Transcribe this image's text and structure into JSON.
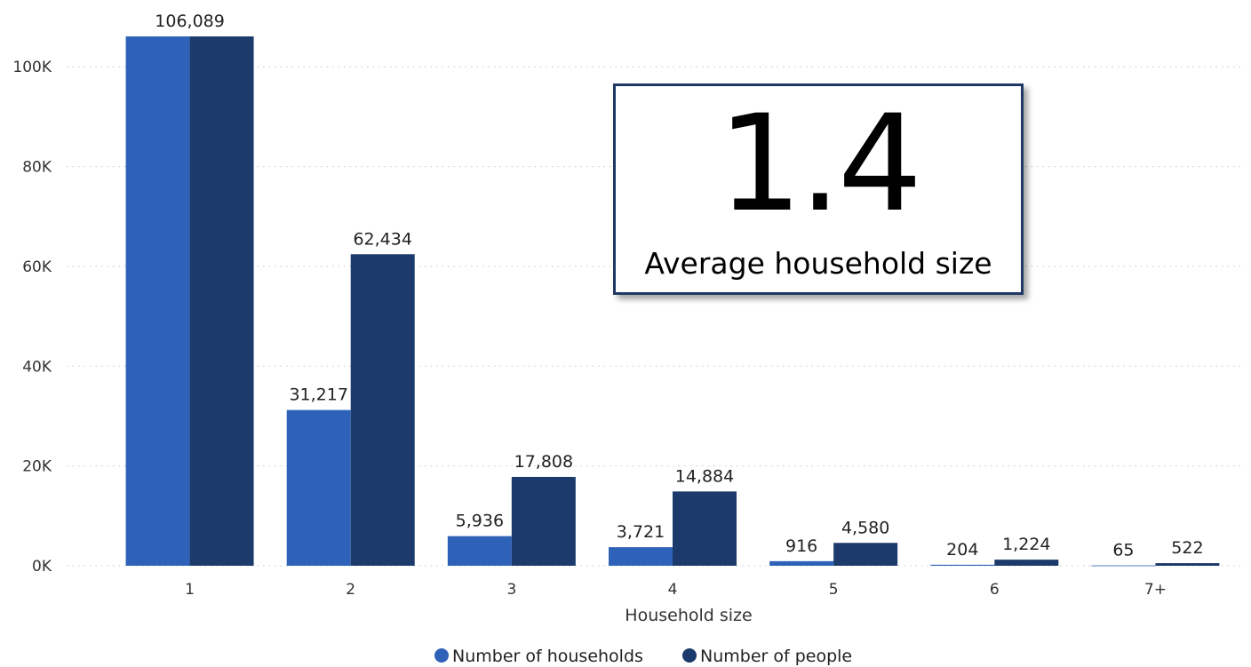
{
  "kpi": {
    "value": "1.4",
    "label": "Average household size"
  },
  "chart_data": {
    "type": "bar",
    "title": "",
    "xlabel": "Household size",
    "ylabel": "",
    "categories": [
      "1",
      "2",
      "3",
      "4",
      "5",
      "6",
      "7+"
    ],
    "series": [
      {
        "name": "Number of households",
        "color": "#2e62b8",
        "values": [
          106089,
          31217,
          5936,
          3721,
          916,
          204,
          65
        ],
        "labels": [
          "106,089",
          "31,217",
          "5,936",
          "3,721",
          "916",
          "204",
          "65"
        ]
      },
      {
        "name": "Number of people",
        "color": "#1c3a6b",
        "values": [
          106089,
          62434,
          17808,
          14884,
          4580,
          1224,
          522
        ],
        "labels": [
          "",
          "62,434",
          "17,808",
          "14,884",
          "4,580",
          "1,224",
          "522"
        ]
      }
    ],
    "ylim": [
      0,
      106089
    ],
    "yticks": [
      0,
      20000,
      40000,
      60000,
      80000,
      100000
    ],
    "ytick_labels": [
      "0K",
      "20K",
      "40K",
      "60K",
      "80K",
      "100K"
    ],
    "grid": true,
    "legend_position": "bottom-center"
  }
}
